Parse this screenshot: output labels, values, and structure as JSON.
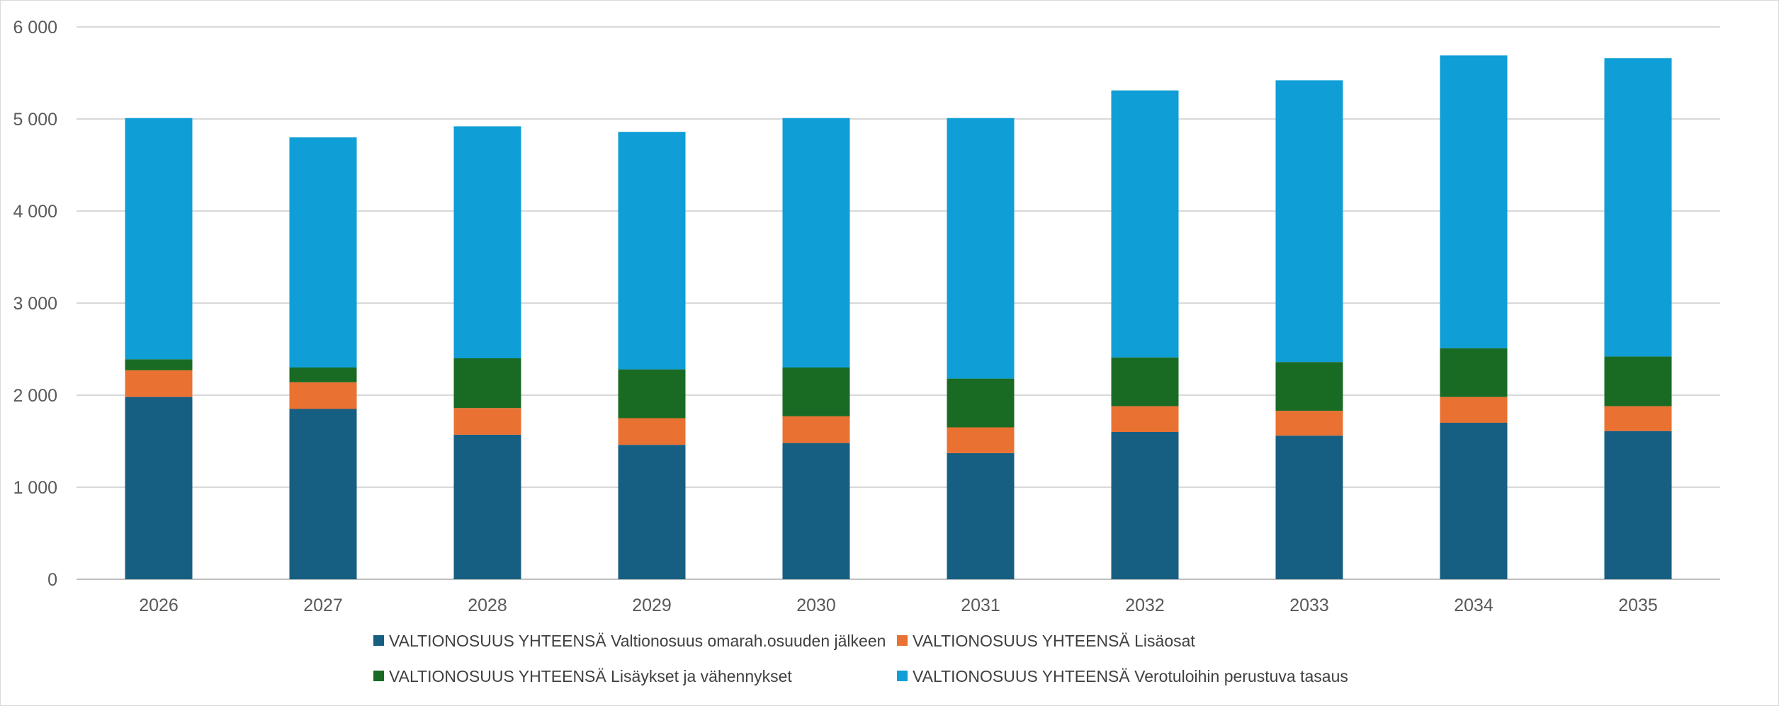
{
  "chart_data": {
    "type": "bar",
    "stacked": true,
    "title": "",
    "xlabel": "",
    "ylabel": "",
    "categories": [
      "2026",
      "2027",
      "2028",
      "2029",
      "2030",
      "2031",
      "2032",
      "2033",
      "2034",
      "2035"
    ],
    "ylim": [
      0,
      6000
    ],
    "yticks": [
      0,
      1000,
      2000,
      3000,
      4000,
      5000,
      6000
    ],
    "ytick_labels": [
      "0",
      "1 000",
      "2 000",
      "3 000",
      "4 000",
      "5 000",
      "6 000"
    ],
    "grid": true,
    "legend_position": "bottom",
    "series": [
      {
        "name": "VALTIONOSUUS YHTEENSÄ Valtionosuus omarah.osuuden jälkeen",
        "color": "#175f82",
        "values": [
          1980,
          1850,
          1570,
          1460,
          1480,
          1370,
          1600,
          1560,
          1700,
          1610
        ]
      },
      {
        "name": "VALTIONOSUUS YHTEENSÄ Lisäosat",
        "color": "#e97132",
        "values": [
          290,
          290,
          290,
          290,
          290,
          280,
          280,
          270,
          280,
          270
        ]
      },
      {
        "name": "VALTIONOSUUS YHTEENSÄ Lisäykset ja vähennykset",
        "color": "#196b24",
        "values": [
          120,
          160,
          540,
          530,
          530,
          530,
          530,
          530,
          530,
          540
        ]
      },
      {
        "name": "VALTIONOSUUS YHTEENSÄ Verotuloihin perustuva tasaus",
        "color": "#0f9ed5",
        "values": [
          2620,
          2500,
          2520,
          2580,
          2710,
          2830,
          2900,
          3060,
          3180,
          3240
        ]
      }
    ]
  }
}
